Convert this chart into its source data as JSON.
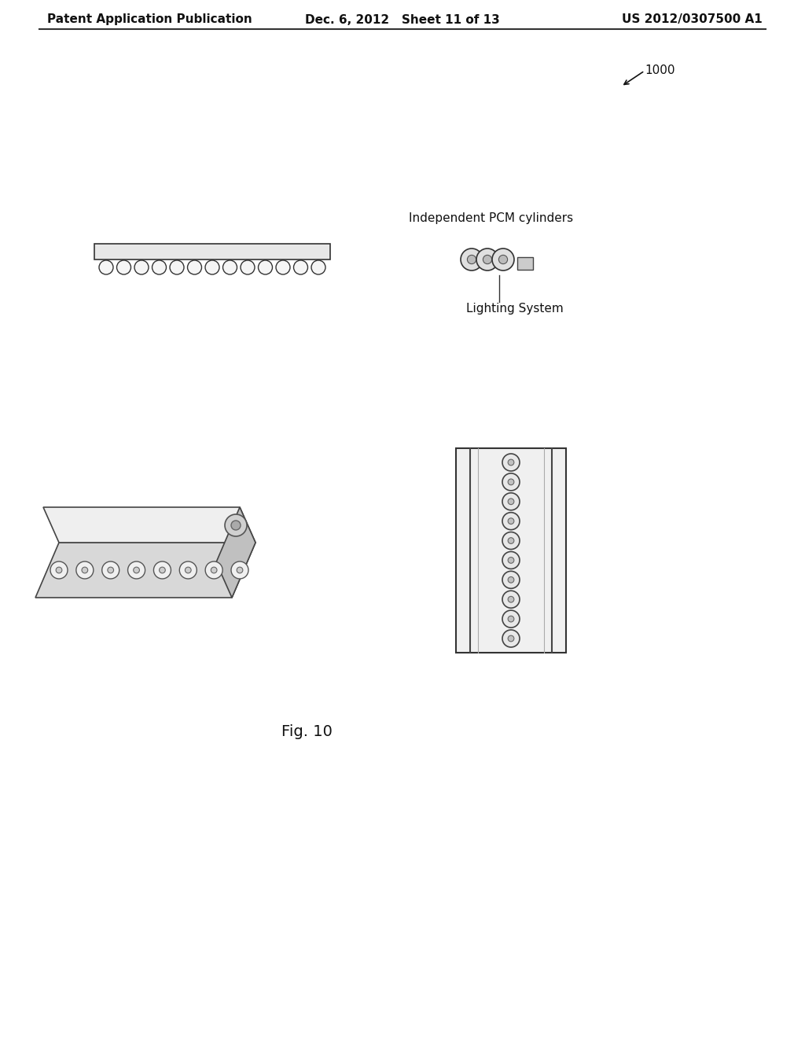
{
  "background_color": "#ffffff",
  "header_left": "Patent Application Publication",
  "header_mid": "Dec. 6, 2012   Sheet 11 of 13",
  "header_right": "US 2012/0307500 A1",
  "fig_label": "Fig. 10",
  "ref_num": "1000",
  "label_pcm": "Independent PCM cylinders",
  "label_lighting": "Lighting System",
  "header_fontsize": 11,
  "fig_label_fontsize": 14
}
